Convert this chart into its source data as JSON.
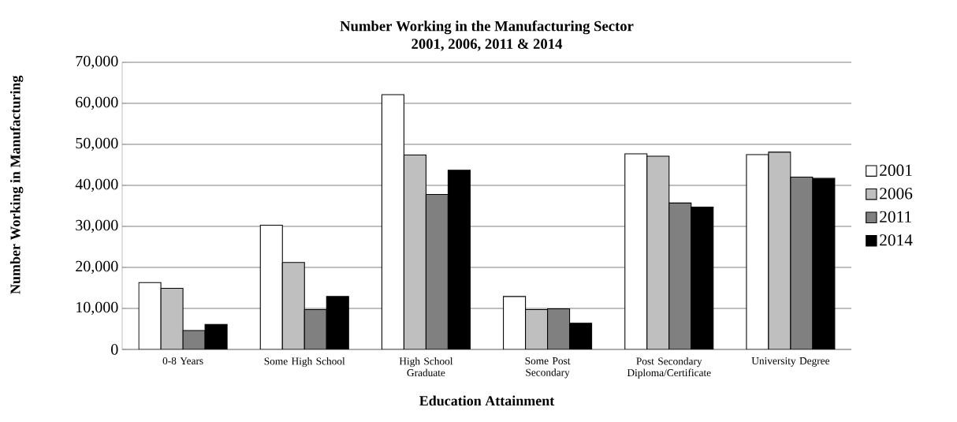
{
  "chart_data": {
    "type": "bar",
    "title": "Number Working in the Manufacturing Sector",
    "subtitle": "2001, 2006, 2011 & 2014",
    "xlabel": "Education Attainment",
    "ylabel": "Number Working in Manufacturing",
    "categories": [
      "0-8 Years",
      "Some High School",
      "High School Graduate",
      "Some Post Secondary",
      "Post Secondary Diploma/Certificate",
      "University Degree"
    ],
    "series": [
      {
        "name": "2001",
        "color": "#ffffff",
        "values": [
          16300,
          30300,
          62100,
          12900,
          47700,
          47500
        ]
      },
      {
        "name": "2006",
        "color": "#bfbfbf",
        "values": [
          14900,
          21200,
          47400,
          9700,
          47100,
          48100
        ]
      },
      {
        "name": "2011",
        "color": "#808080",
        "values": [
          4600,
          9700,
          37800,
          9900,
          35700,
          42000
        ]
      },
      {
        "name": "2014",
        "color": "#000000",
        "values": [
          6100,
          12900,
          43700,
          6400,
          34700,
          41700
        ]
      }
    ],
    "ylim": [
      0,
      70000
    ],
    "yticks": [
      {
        "value": 0,
        "label": "0"
      },
      {
        "value": 10000,
        "label": "10,000"
      },
      {
        "value": 20000,
        "label": "20,000"
      },
      {
        "value": 30000,
        "label": "30,000"
      },
      {
        "value": 40000,
        "label": "40,000"
      },
      {
        "value": 50000,
        "label": "50,000"
      },
      {
        "value": 60000,
        "label": "60,000"
      },
      {
        "value": 70000,
        "label": "70,000"
      }
    ],
    "grid": "y",
    "legend": "right"
  }
}
